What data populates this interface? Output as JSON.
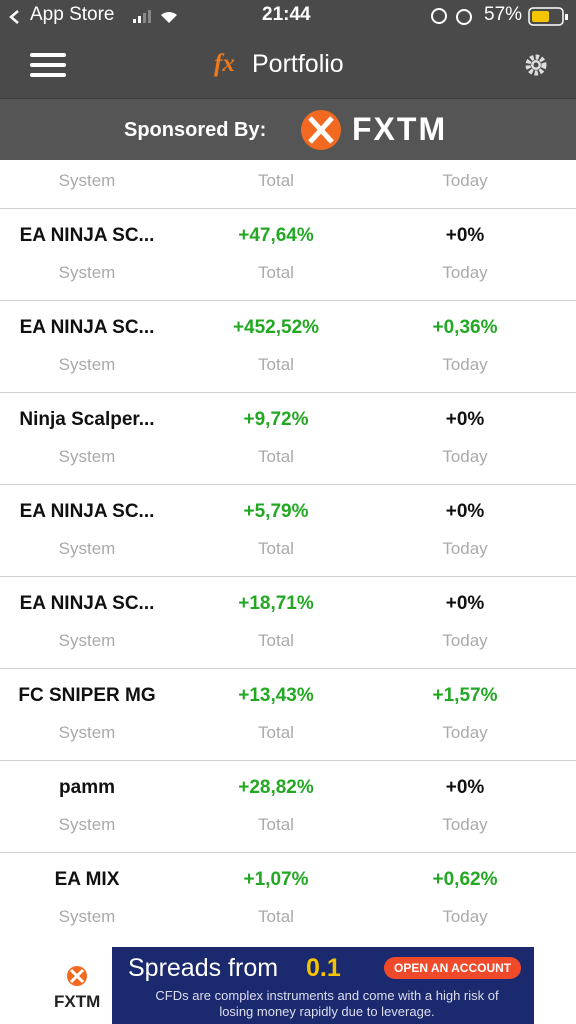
{
  "status_bar": {
    "carrier": "App Store",
    "time": "21:44",
    "battery": "57%"
  },
  "nav": {
    "logo": "fx",
    "title": "Portfolio"
  },
  "sponsor": {
    "label": "Sponsored By:",
    "brand": "FXTM"
  },
  "column_labels": [
    "System",
    "Total",
    "Today"
  ],
  "table": {
    "rows": [
      {
        "system": "EA NINJA SC...",
        "total": {
          "text": "+47,64%",
          "color": "#23a823"
        },
        "today": {
          "text": "+0%",
          "color": "#111111"
        }
      },
      {
        "system": "EA NINJA SC...",
        "total": {
          "text": "+452,52%",
          "color": "#23a823"
        },
        "today": {
          "text": "+0,36%",
          "color": "#23a823"
        }
      },
      {
        "system": "Ninja Scalper...",
        "total": {
          "text": "+9,72%",
          "color": "#23a823"
        },
        "today": {
          "text": "+0%",
          "color": "#111111"
        }
      },
      {
        "system": "EA NINJA SC...",
        "total": {
          "text": "+5,79%",
          "color": "#23a823"
        },
        "today": {
          "text": "+0%",
          "color": "#111111"
        }
      },
      {
        "system": "EA NINJA SC...",
        "total": {
          "text": "+18,71%",
          "color": "#23a823"
        },
        "today": {
          "text": "+0%",
          "color": "#111111"
        }
      },
      {
        "system": "FC SNIPER MG",
        "total": {
          "text": "+13,43%",
          "color": "#23a823"
        },
        "today": {
          "text": "+1,57%",
          "color": "#23a823"
        }
      },
      {
        "system": "pamm",
        "total": {
          "text": "+28,82%",
          "color": "#23a823"
        },
        "today": {
          "text": "+0%",
          "color": "#111111"
        }
      },
      {
        "system": "EA MIX",
        "total": {
          "text": "+1,07%",
          "color": "#23a823"
        },
        "today": {
          "text": "+0,62%",
          "color": "#23a823"
        }
      }
    ]
  },
  "ad": {
    "brand": "FXTM",
    "headline": "Spreads from",
    "spread": "0.1",
    "button": "OPEN AN ACCOUNT",
    "disclaimer": "CFDs are complex instruments and come with a high risk of losing money rapidly due to leverage."
  }
}
